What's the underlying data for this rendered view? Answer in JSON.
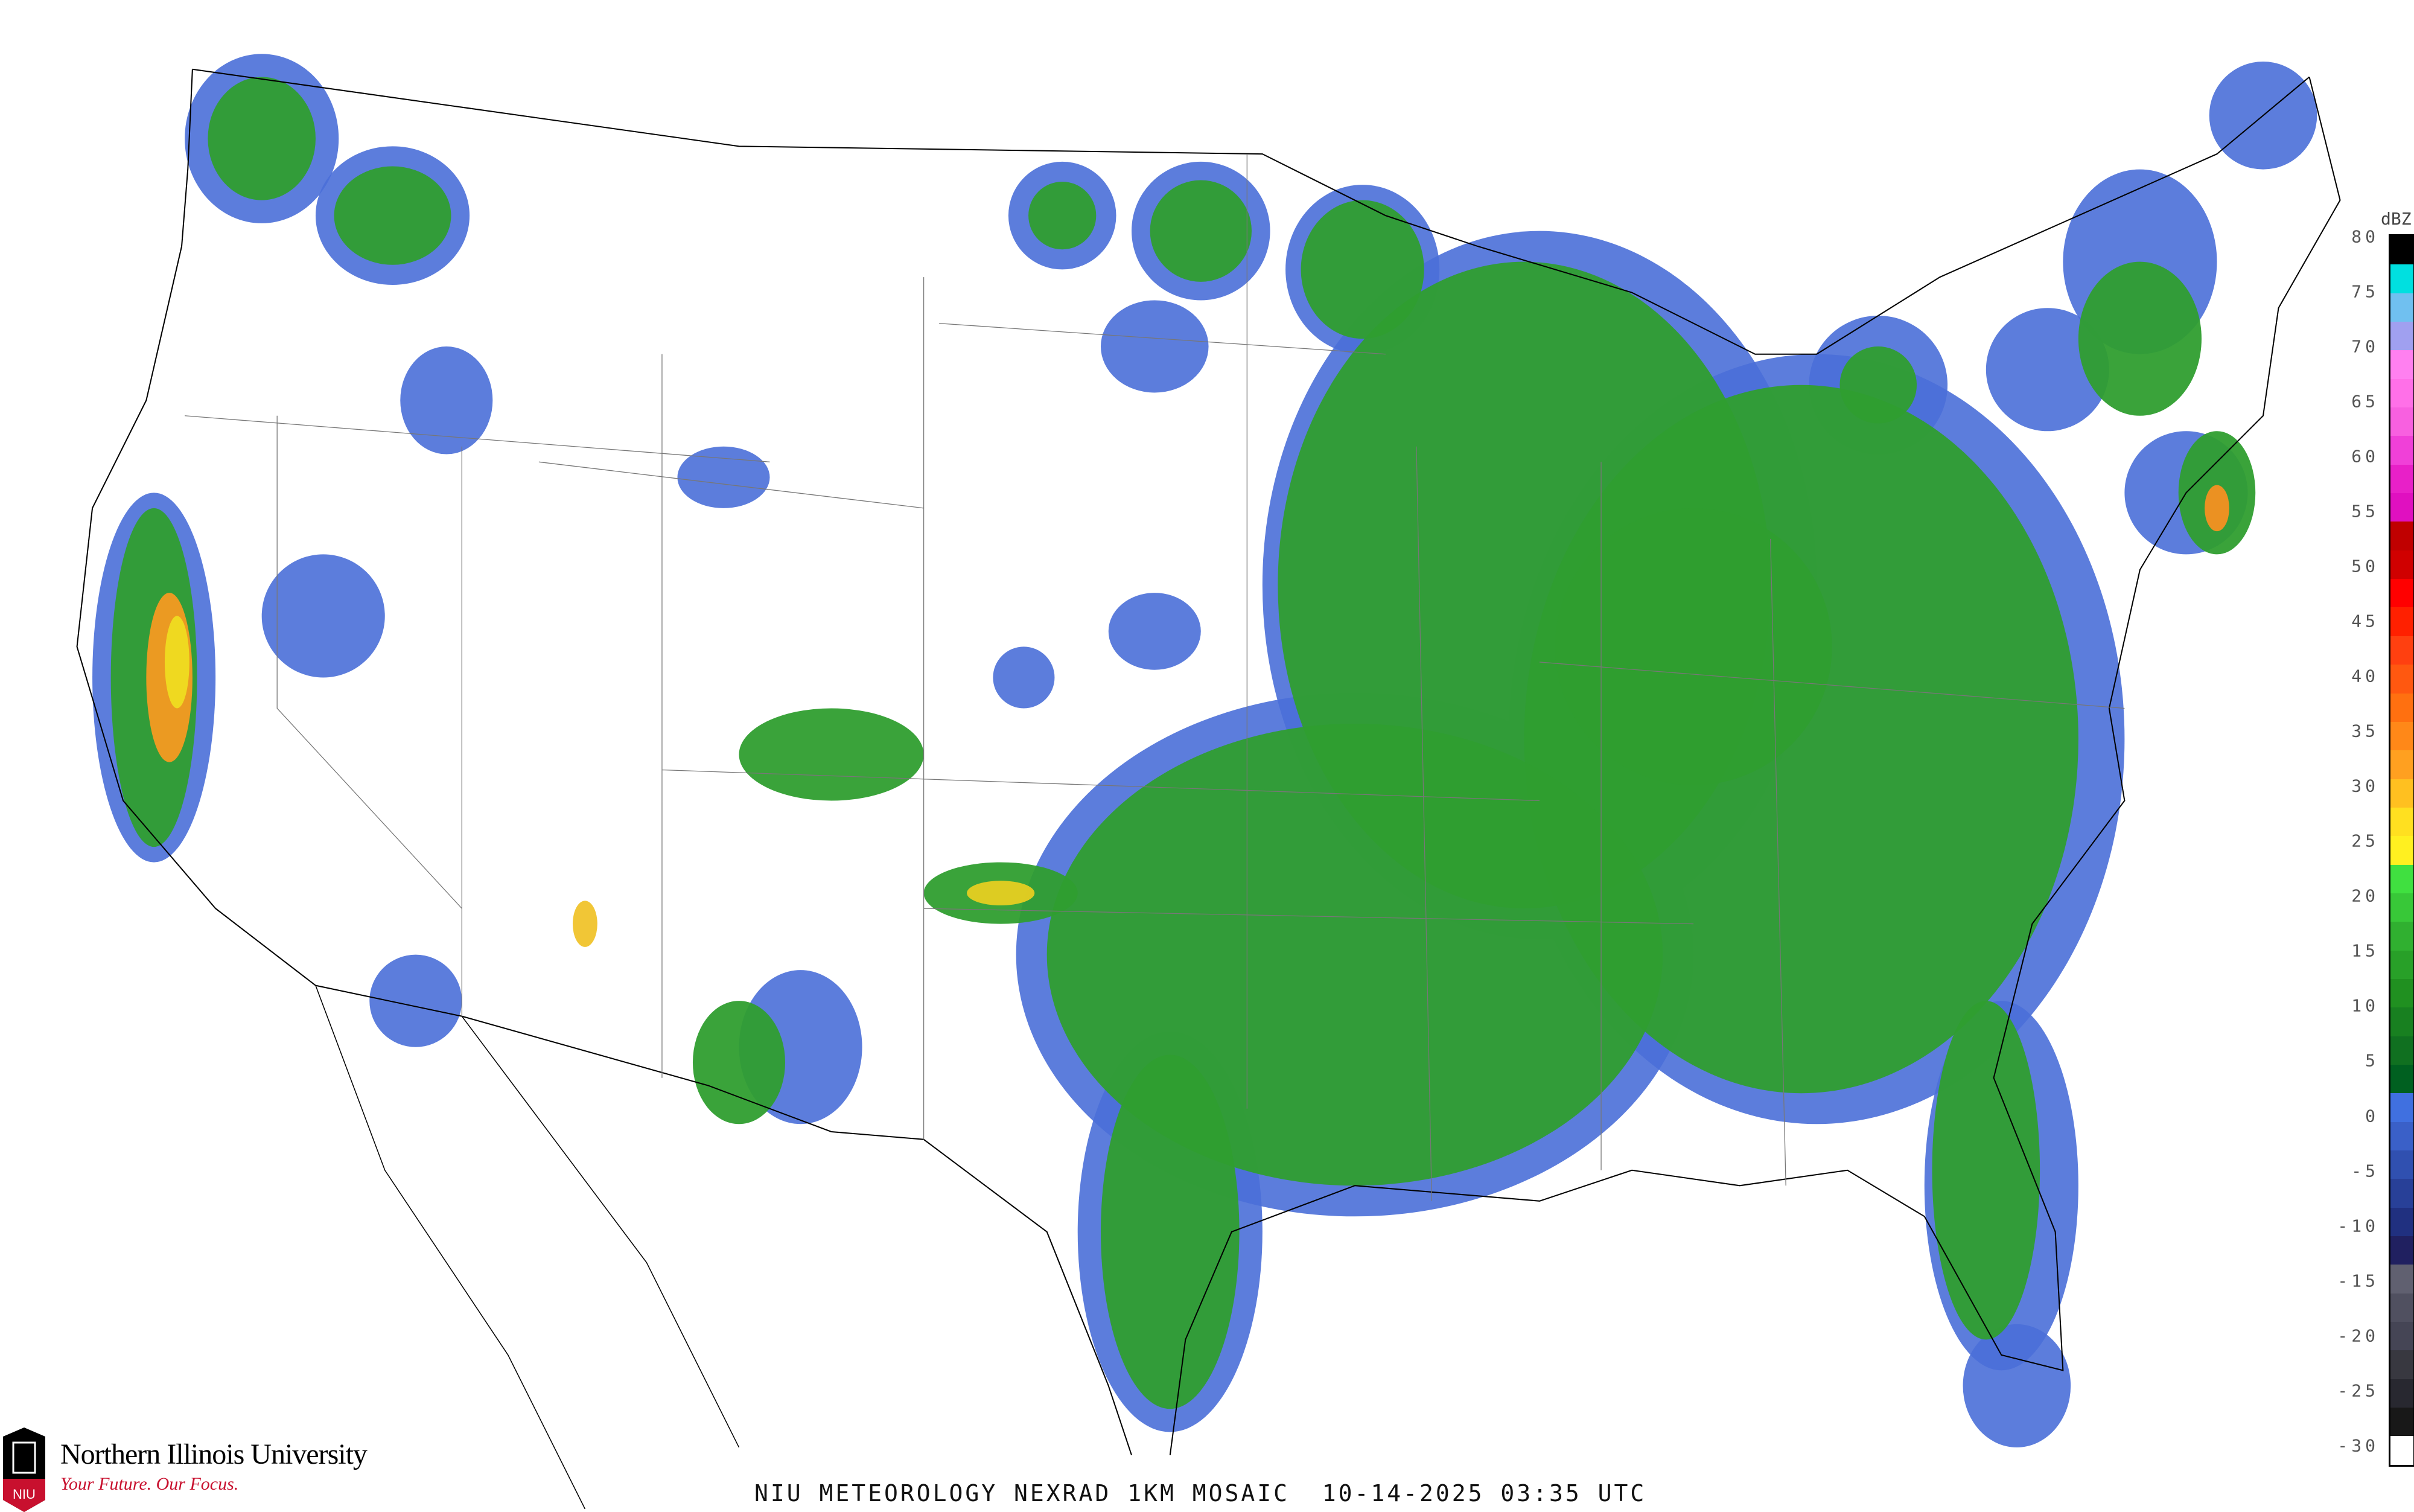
{
  "caption": "NIU METEOROLOGY NEXRAD 1KM MOSAIC  10-14-2025 03:35 UTC",
  "branding": {
    "university": "Northern Illinois University",
    "tagline": "Your Future. Our Focus.",
    "logo_text": "NIU",
    "colors": {
      "red": "#c8102e",
      "black": "#000000"
    }
  },
  "legend": {
    "unit": "dBZ",
    "ticks": [
      "80",
      "75",
      "70",
      "65",
      "60",
      "55",
      "50",
      "45",
      "40",
      "35",
      "30",
      "25",
      "20",
      "15",
      "10",
      "5",
      "0",
      "-5",
      "-10",
      "-15",
      "-20",
      "-25",
      "-30"
    ],
    "colors": [
      "#000000",
      "#00e0e0",
      "#70c0f0",
      "#a0a0f0",
      "#ff80f0",
      "#ff70e8",
      "#f860e0",
      "#f040d8",
      "#e820c8",
      "#e010c0",
      "#c00000",
      "#d00000",
      "#ff0000",
      "#ff2000",
      "#ff4010",
      "#ff5810",
      "#ff7010",
      "#ff8818",
      "#ffa020",
      "#ffc020",
      "#ffe020",
      "#fff020",
      "#40e040",
      "#38c838",
      "#30b030",
      "#28a028",
      "#209020",
      "#188020",
      "#107020",
      "#006020",
      "#4070e0",
      "#3a60c8",
      "#3050b0",
      "#284098",
      "#203080",
      "#202060",
      "#606070",
      "#505060",
      "#454555",
      "#383840",
      "#282830",
      "#181818",
      "#ffffff"
    ]
  },
  "map_colors": {
    "background": "#ffffff",
    "outline": "#000000",
    "counties": "#b8b8c8",
    "highways": "#b05030",
    "rain_light": "#2f9e2f",
    "rain_halo": "#4a6fd8"
  }
}
